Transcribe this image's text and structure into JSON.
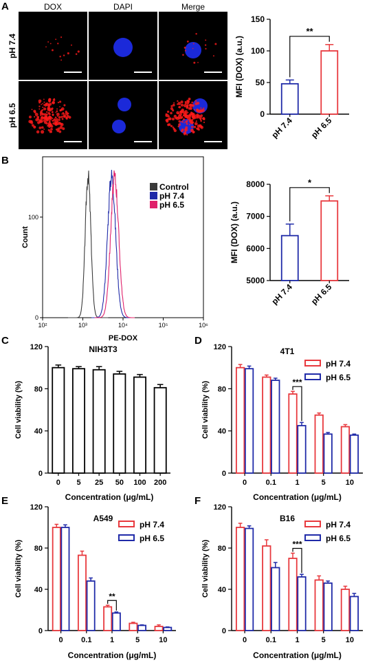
{
  "panel_letters": [
    "A",
    "B",
    "C",
    "D",
    "E",
    "F"
  ],
  "micrographs": {
    "col_labels": [
      "DOX",
      "DAPI",
      "Merge"
    ],
    "row_labels": [
      "pH 7.4",
      "pH 6.5"
    ]
  },
  "colors": {
    "ph74": "#e8383d",
    "ph65": "#1f2aa8",
    "control": "#3a3a3a",
    "dox": "#ff1a1a",
    "dapi": "#2030ff",
    "axis": "#000000"
  },
  "chart_data": [
    {
      "id": "A_bar",
      "type": "bar",
      "categories": [
        "pH 7.4",
        "pH 6.5"
      ],
      "values": [
        48,
        100
      ],
      "errors": [
        6,
        10
      ],
      "bar_colors": [
        "#1f2aa8",
        "#e8383d"
      ],
      "ylabel": "MFI (DOX) (a.u.)",
      "xlabel": "",
      "ylim": [
        0,
        150
      ],
      "yticks": [
        0,
        50,
        100,
        150
      ],
      "significance": [
        {
          "between": [
            0,
            1
          ],
          "label": "**"
        }
      ],
      "grid": false
    },
    {
      "id": "B_hist",
      "type": "area",
      "xscale": "log",
      "xlim": [
        100,
        1000000
      ],
      "xticks": [
        "10²",
        "10³",
        "10⁴",
        "10⁵",
        "10⁶"
      ],
      "yticks": [
        "0",
        "100"
      ],
      "ylim": [
        0,
        160
      ],
      "xlabel": "PE-DOX",
      "ylabel": "Count",
      "legend_position": "top-right",
      "series": [
        {
          "name": "Control",
          "color": "#3a3a3a",
          "peak_x": 1350,
          "peak_count": 150,
          "log_width": 0.07
        },
        {
          "name": "pH 7.4",
          "color": "#1f2aa8",
          "peak_x": 5200,
          "peak_count": 150,
          "log_width": 0.1
        },
        {
          "name": "pH 6.5",
          "color": "#e0206a",
          "peak_x": 6200,
          "peak_count": 148,
          "log_width": 0.1
        }
      ]
    },
    {
      "id": "B_bar",
      "type": "bar",
      "categories": [
        "pH 7.4",
        "pH 6.5"
      ],
      "values": [
        6400,
        7480
      ],
      "errors": [
        360,
        160
      ],
      "bar_colors": [
        "#1f2aa8",
        "#e8383d"
      ],
      "ylabel": "MFI (DOX) (a.u.)",
      "xlabel": "",
      "ylim": [
        5000,
        8000
      ],
      "yticks": [
        5000,
        6000,
        7000,
        8000
      ],
      "significance": [
        {
          "between": [
            0,
            1
          ],
          "label": "*"
        }
      ],
      "grid": false
    },
    {
      "id": "C_bar",
      "type": "bar",
      "title": "NIH3T3",
      "categories": [
        "0",
        "5",
        "25",
        "50",
        "100",
        "200"
      ],
      "values": [
        100,
        99,
        98,
        94,
        91,
        81
      ],
      "errors": [
        2.5,
        2,
        3,
        2.5,
        2.5,
        3
      ],
      "bar_colors": [
        "#000000"
      ],
      "ylabel": "Cell viability (%)",
      "xlabel": "Concentration (μg/mL)",
      "ylim": [
        0,
        120
      ],
      "yticks": [
        0,
        40,
        80,
        120
      ],
      "grid": false
    },
    {
      "id": "D_bar",
      "type": "bar",
      "title": "4T1",
      "categories": [
        "0",
        "0.1",
        "1",
        "5",
        "10"
      ],
      "series": [
        {
          "name": "pH 7.4",
          "values": [
            100,
            91,
            75,
            55,
            44
          ],
          "errors": [
            3,
            2,
            2.5,
            2,
            2
          ],
          "color": "#e8383d"
        },
        {
          "name": "pH 6.5",
          "values": [
            99,
            88,
            45,
            37,
            36
          ],
          "errors": [
            2.5,
            2,
            3,
            1.5,
            1
          ],
          "color": "#1f2aa8"
        }
      ],
      "ylabel": "Cell viability (%)",
      "xlabel": "Concentration (μg/mL)",
      "ylim": [
        0,
        120
      ],
      "yticks": [
        0,
        40,
        80,
        120
      ],
      "significance": [
        {
          "category": 2,
          "label": "***"
        }
      ],
      "legend_position": "top-right",
      "grid": false
    },
    {
      "id": "E_bar",
      "type": "bar",
      "title": "A549",
      "categories": [
        "0",
        "0.1",
        "1",
        "5",
        "10"
      ],
      "series": [
        {
          "name": "pH 7.4",
          "values": [
            100,
            73,
            23,
            7,
            4
          ],
          "errors": [
            3,
            4,
            1.5,
            1,
            1.5
          ],
          "color": "#e8383d"
        },
        {
          "name": "pH 6.5",
          "values": [
            100,
            48,
            17,
            5,
            3
          ],
          "errors": [
            2.5,
            3,
            1,
            0.5,
            0.5
          ],
          "color": "#1f2aa8"
        }
      ],
      "ylabel": "Cell viability (%)",
      "xlabel": "Concentration (μg/mL)",
      "ylim": [
        0,
        120
      ],
      "yticks": [
        0,
        40,
        80,
        120
      ],
      "significance": [
        {
          "category": 2,
          "label": "**"
        }
      ],
      "legend_position": "top-right",
      "grid": false
    },
    {
      "id": "F_bar",
      "type": "bar",
      "title": "B16",
      "categories": [
        "0",
        "0.1",
        "1",
        "5",
        "10"
      ],
      "series": [
        {
          "name": "pH 7.4",
          "values": [
            100,
            82,
            70,
            49,
            40
          ],
          "errors": [
            4,
            6,
            5,
            4,
            3
          ],
          "color": "#e8383d"
        },
        {
          "name": "pH 6.5",
          "values": [
            99,
            61,
            52,
            46,
            33
          ],
          "errors": [
            2.5,
            5,
            2.5,
            2,
            3
          ],
          "color": "#1f2aa8"
        }
      ],
      "ylabel": "Cell viability (%)",
      "xlabel": "Concentration (μg/mL)",
      "ylim": [
        0,
        120
      ],
      "yticks": [
        0,
        40,
        80,
        120
      ],
      "significance": [
        {
          "category": 2,
          "label": "***"
        }
      ],
      "legend_position": "top-right",
      "grid": false
    }
  ]
}
